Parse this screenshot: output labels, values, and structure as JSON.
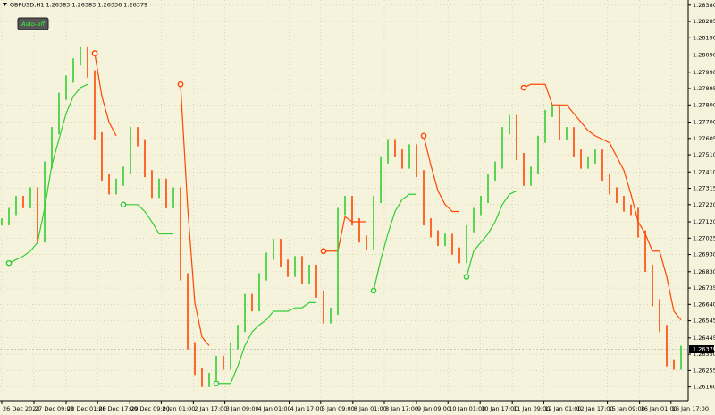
{
  "chart_data": {
    "type": "price-bars",
    "title": "GBPUSD,H1  1.26383 1.26383 1.26336 1.26379",
    "button": "Auto-off",
    "last_price": 1.26379,
    "grid": true,
    "xlim": [
      -0.25,
      95.75
    ],
    "ylim": [
      1.2608,
      1.2841
    ],
    "yticks": [
      {
        "value": 1.2838,
        "label": "1.28380"
      },
      1.28285,
      {
        "value": 1.2819,
        "label": "1.28190"
      },
      {
        "value": 1.2809,
        "label": "1.28090"
      },
      {
        "value": 1.2799,
        "label": "1.27990"
      },
      1.27895,
      {
        "value": 1.278,
        "label": "1.27800"
      },
      {
        "value": 1.277,
        "label": "1.27700"
      },
      1.27605,
      {
        "value": 1.2751,
        "label": "1.27510"
      },
      {
        "value": 1.2741,
        "label": "1.27410"
      },
      1.27315,
      {
        "value": 1.2722,
        "label": "1.27220"
      },
      {
        "value": 1.2712,
        "label": "1.27120"
      },
      1.27025,
      {
        "value": 1.2693,
        "label": "1.26930"
      },
      {
        "value": 1.2683,
        "label": "1.26830"
      },
      1.26735,
      {
        "value": 1.2664,
        "label": "1.26640"
      },
      1.26545,
      1.26445,
      {
        "value": 1.2635,
        "label": "1.26350"
      },
      1.26255,
      {
        "value": 1.2616,
        "label": "1.26160"
      }
    ],
    "xticks": [
      {
        "value": 0,
        "label": "26 Dec 2023"
      },
      {
        "value": 4.5,
        "label": "27 Dec 09:00"
      },
      {
        "value": 9,
        "label": "28 Dec 01:00"
      },
      {
        "value": 13.4,
        "label": "28 Dec 17:00"
      },
      {
        "value": 17.9,
        "label": "29 Dec 09:00"
      },
      {
        "value": 22.3,
        "label": "2 Jan 01:00"
      },
      {
        "value": 26.8,
        "label": "2 Jan 17:00"
      },
      {
        "value": 31.2,
        "label": "3 Jan 09:00"
      },
      {
        "value": 35.7,
        "label": "4 Jan 01:00"
      },
      {
        "value": 40.2,
        "label": "4 Jan 17:00"
      },
      {
        "value": 44.6,
        "label": "5 Jan 09:00"
      },
      {
        "value": 49.1,
        "label": "8 Jan 01:00"
      },
      {
        "value": 53.5,
        "label": "8 Jan 17:00"
      },
      {
        "value": 58,
        "label": "9 Jan 09:00"
      },
      {
        "value": 62.4,
        "label": "10 Jan 01:00"
      },
      {
        "value": 66.9,
        "label": "10 Jan 17:00"
      },
      {
        "value": 71.4,
        "label": "11 Jan 09:00"
      },
      {
        "value": 75.8,
        "label": "12 Jan 01:00"
      },
      {
        "value": 80.3,
        "label": "12 Jan 17:00"
      },
      {
        "value": 84.7,
        "label": "15 Jan 09:00"
      },
      {
        "value": 89.2,
        "label": "16 Jan 01:00"
      },
      {
        "value": 93.6,
        "label": "16 Jan 17:00"
      }
    ],
    "up_color": "#32cd32",
    "down_color": "#ff4500",
    "series": [
      {
        "role": "close",
        "values": [
          1.2712,
          1.2718,
          1.2725,
          1.2722,
          1.273,
          1.2702,
          1.2745,
          1.2765,
          1.2785,
          1.2795,
          1.2805,
          1.2812,
          1.2798,
          1.2762,
          1.2738,
          1.273,
          1.2735,
          1.2742,
          1.2765,
          1.2758,
          1.274,
          1.2728,
          1.2735,
          1.2722,
          1.273,
          1.268,
          1.264,
          1.2625,
          1.2618,
          1.2622,
          1.2632,
          1.2628,
          1.264,
          1.265,
          1.2668,
          1.2662,
          1.268,
          1.2692,
          1.27,
          1.2688,
          1.2682,
          1.269,
          1.2678,
          1.2685,
          1.267,
          1.2655,
          1.266,
          1.2718,
          1.2725,
          1.2712,
          1.2702,
          1.2698,
          1.2725,
          1.2748,
          1.2758,
          1.2752,
          1.2745,
          1.2755,
          1.274,
          1.2712,
          1.2705,
          1.27,
          1.2703,
          1.2695,
          1.269,
          1.2708,
          1.2718,
          1.2725,
          1.2738,
          1.2745,
          1.2765,
          1.2772,
          1.275,
          1.2735,
          1.2742,
          1.276,
          1.2775,
          1.2778,
          1.2762,
          1.2765,
          1.2752,
          1.2745,
          1.2748,
          1.2752,
          1.2738,
          1.273,
          1.2725,
          1.272,
          1.2718,
          1.2705,
          1.2685,
          1.2665,
          1.265,
          1.263,
          1.2628,
          1.26379
        ]
      },
      {
        "role": "stop",
        "color": "#32cd32",
        "values": [
          null,
          1.2688,
          1.269,
          1.2692,
          1.2695,
          1.27,
          1.272,
          1.2745,
          1.276,
          1.2775,
          1.2785,
          1.279,
          1.2792,
          null,
          null,
          null,
          null,
          1.2722,
          1.2722,
          1.2722,
          1.2718,
          1.2712,
          1.2705,
          1.2705,
          1.2705,
          null,
          null,
          null,
          null,
          null,
          1.2618,
          1.2618,
          1.2618,
          1.2628,
          1.264,
          1.2648,
          1.2652,
          1.2655,
          1.266,
          1.266,
          1.266,
          1.2662,
          1.2662,
          1.2665,
          1.2665,
          null,
          null,
          null,
          null,
          null,
          null,
          null,
          1.2672,
          1.269,
          1.2705,
          1.2718,
          1.2725,
          1.2728,
          1.2728,
          null,
          null,
          null,
          null,
          null,
          null,
          1.268,
          1.2695,
          1.27,
          1.2705,
          1.2712,
          1.2722,
          1.2728,
          1.273,
          null,
          null,
          null,
          null,
          null,
          null,
          null,
          null,
          null,
          null,
          null,
          null,
          null,
          null,
          null,
          null,
          null,
          null,
          null,
          null,
          null,
          null,
          null
        ]
      },
      {
        "role": "stop",
        "color": "#ff4500",
        "values": [
          null,
          null,
          null,
          null,
          null,
          null,
          null,
          null,
          null,
          null,
          null,
          null,
          null,
          1.281,
          1.2785,
          1.277,
          1.2762,
          null,
          null,
          null,
          null,
          null,
          null,
          null,
          null,
          1.2792,
          1.272,
          1.2665,
          1.2645,
          1.264,
          null,
          null,
          null,
          null,
          null,
          null,
          null,
          null,
          null,
          null,
          null,
          null,
          null,
          null,
          null,
          1.2695,
          1.2695,
          1.2695,
          1.2715,
          1.2712,
          1.2712,
          1.2712,
          null,
          null,
          null,
          null,
          null,
          null,
          null,
          1.2762,
          1.2745,
          1.273,
          1.2722,
          1.2718,
          1.2718,
          null,
          null,
          null,
          null,
          null,
          null,
          null,
          null,
          1.279,
          1.2792,
          1.2792,
          1.2792,
          1.278,
          1.278,
          1.278,
          1.2775,
          1.277,
          1.2765,
          1.2762,
          1.276,
          1.2758,
          1.275,
          1.2742,
          1.2728,
          1.2712,
          1.2705,
          1.2695,
          1.2695,
          1.268,
          1.266,
          1.2655
        ]
      }
    ]
  }
}
